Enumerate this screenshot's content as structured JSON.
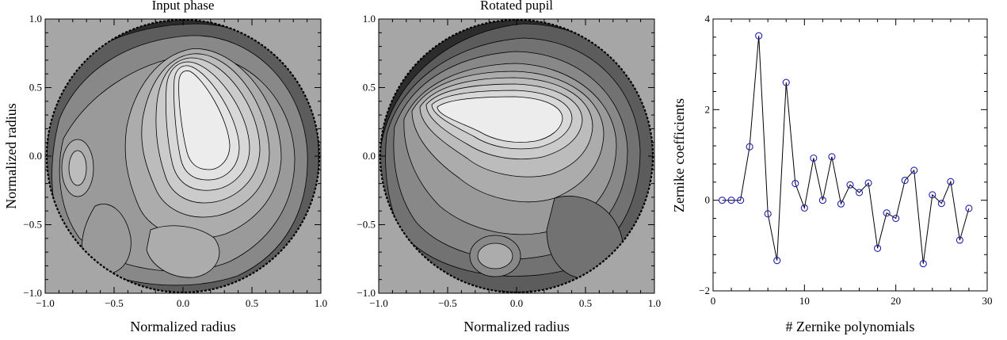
{
  "chart_data": [
    {
      "type": "heatmap",
      "title": "Input phase",
      "xlabel": "Normalized radius",
      "ylabel": "Normalized radius",
      "xlim": [
        -1.0,
        1.0
      ],
      "ylim": [
        -1.0,
        1.0
      ],
      "xticks": [
        "−1.0",
        "−0.5",
        "0.0",
        "0.5",
        "1.0"
      ],
      "yticks": [
        "−1.0",
        "−0.5",
        "0.0",
        "0.5",
        "1.0"
      ],
      "background_color": "#a6a6a6",
      "contour_levels": 12,
      "grayscale": [
        "#2c2c2c",
        "#444444",
        "#5c5c5c",
        "#727272",
        "#888888",
        "#9a9a9a",
        "#acacac",
        "#bcbcbc",
        "#cbcbcb",
        "#d8d8d8",
        "#e3e3e3",
        "#ececec"
      ]
    },
    {
      "type": "heatmap",
      "title": "Rotated pupil",
      "xlabel": "Normalized radius",
      "ylabel": "",
      "xlim": [
        -1.0,
        1.0
      ],
      "ylim": [
        -1.0,
        1.0
      ],
      "xticks": [
        "−1.0",
        "−0.5",
        "0.0",
        "0.5",
        "1.0"
      ],
      "yticks": [
        "−1.0",
        "−0.5",
        "0.0",
        "0.5",
        "1.0"
      ],
      "background_color": "#a6a6a6",
      "contour_levels": 12,
      "grayscale": [
        "#2c2c2c",
        "#444444",
        "#5c5c5c",
        "#727272",
        "#888888",
        "#9a9a9a",
        "#acacac",
        "#bcbcbc",
        "#cbcbcb",
        "#d8d8d8",
        "#e3e3e3",
        "#ececec"
      ]
    },
    {
      "type": "line",
      "title": "",
      "xlabel": "# Zernike polynomials",
      "ylabel": "Zernike coefficients",
      "xlim": [
        0,
        30
      ],
      "ylim": [
        -2,
        4
      ],
      "xticks": [
        "0",
        "10",
        "20",
        "30"
      ],
      "yticks": [
        "−2",
        "0",
        "2",
        "4"
      ],
      "marker_color": "#1f1fb4",
      "series": [
        {
          "x": [
            1,
            2,
            3,
            4,
            5,
            6,
            7,
            8,
            9,
            10,
            11,
            12,
            13,
            14,
            15,
            16,
            17,
            18,
            19,
            20,
            21,
            22,
            23,
            24,
            25,
            26,
            27,
            28
          ],
          "values": [
            0.0,
            0.0,
            0.0,
            1.18,
            3.63,
            -0.3,
            -1.33,
            2.6,
            0.37,
            -0.17,
            0.93,
            0.0,
            0.96,
            -0.08,
            0.34,
            0.17,
            0.38,
            -1.06,
            -0.28,
            -0.4,
            0.44,
            0.66,
            -1.4,
            0.12,
            -0.07,
            0.41,
            -0.88,
            -0.18
          ]
        }
      ]
    }
  ]
}
